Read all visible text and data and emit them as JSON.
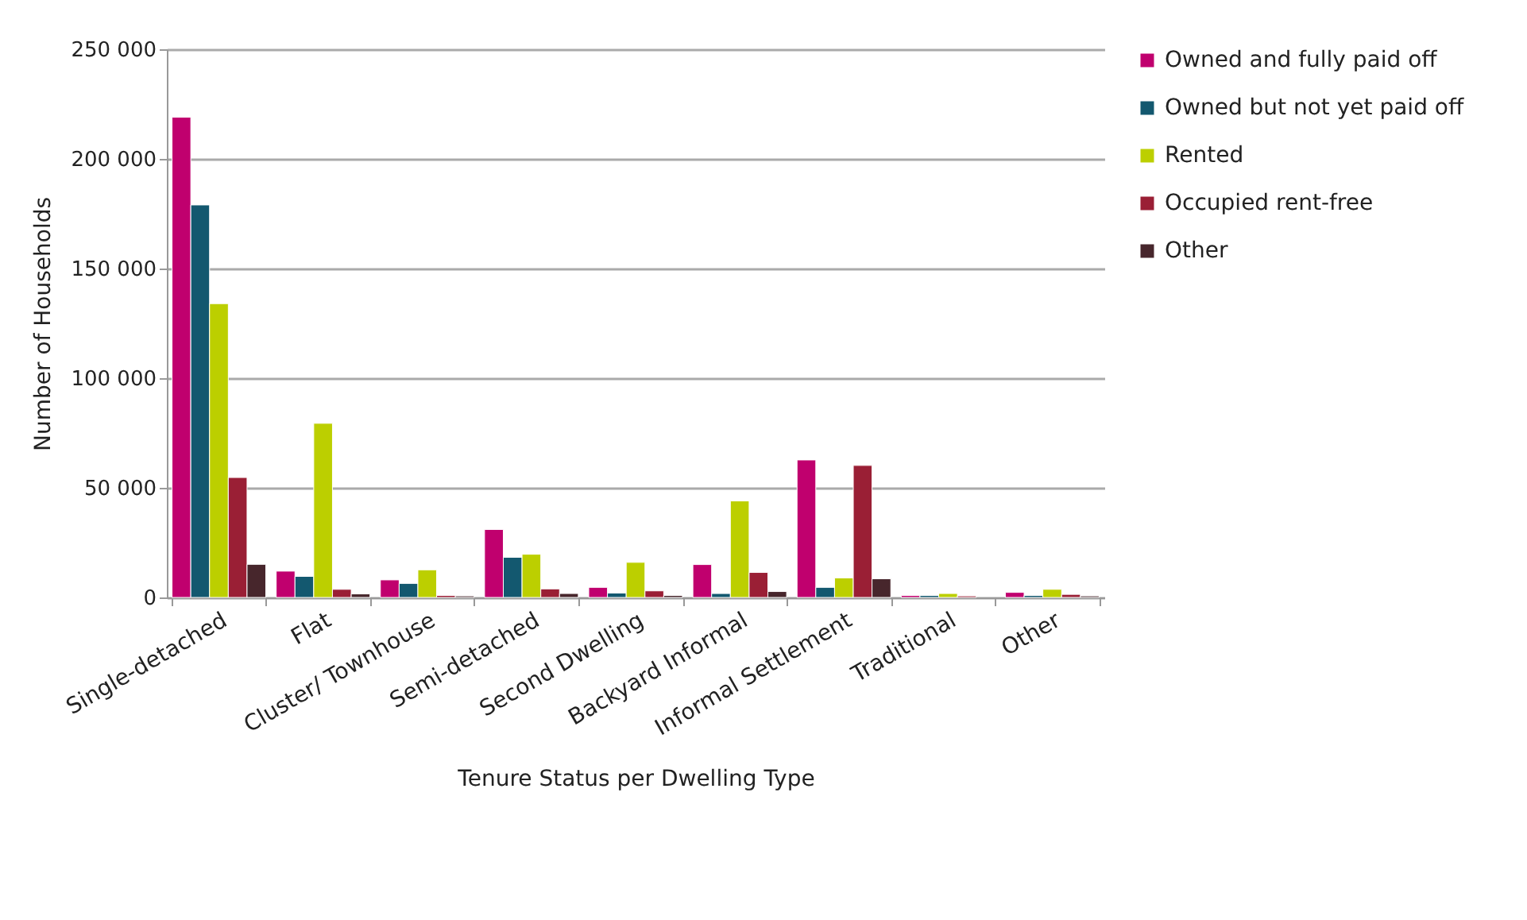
{
  "chart_data": {
    "type": "bar",
    "xlabel": "Tenure Status per Dwelling Type",
    "ylabel": "Number of Households",
    "categories": [
      "Single-detached",
      "Flat",
      "Cluster/ Townhouse",
      "Semi-detached",
      "Second Dwelling",
      "Backyard Informal",
      "Informal Settlement",
      "Traditional",
      "Other"
    ],
    "series": [
      {
        "name": "Owned and fully paid off",
        "color": "#c0006e",
        "values": [
          219000,
          12000,
          8000,
          31000,
          4600,
          15000,
          62700,
          900,
          2300
        ]
      },
      {
        "name": "Owned but not yet paid off",
        "color": "#13586f",
        "values": [
          179000,
          9600,
          6400,
          18300,
          2000,
          1800,
          4600,
          900,
          900
        ]
      },
      {
        "name": "Rented",
        "color": "#bccf00",
        "values": [
          134000,
          79400,
          12600,
          19700,
          16000,
          44000,
          8900,
          1800,
          3700
        ]
      },
      {
        "name": "Occupied rent-free",
        "color": "#9a1f35",
        "values": [
          54700,
          3700,
          900,
          3900,
          3000,
          11400,
          60200,
          700,
          1400
        ]
      },
      {
        "name": "Other",
        "color": "#47262c",
        "values": [
          15100,
          1600,
          700,
          1800,
          900,
          2700,
          8500,
          null,
          700
        ]
      }
    ],
    "ylim": [
      0,
      250000
    ],
    "yticks": [
      {
        "value": 0,
        "label": "0"
      },
      {
        "value": 50000,
        "label": "50 000"
      },
      {
        "value": 100000,
        "label": "100 000"
      },
      {
        "value": 150000,
        "label": "150 000"
      },
      {
        "value": 200000,
        "label": "200 000"
      },
      {
        "value": 250000,
        "label": "250 000"
      }
    ],
    "grid": "y",
    "legend": "right"
  }
}
